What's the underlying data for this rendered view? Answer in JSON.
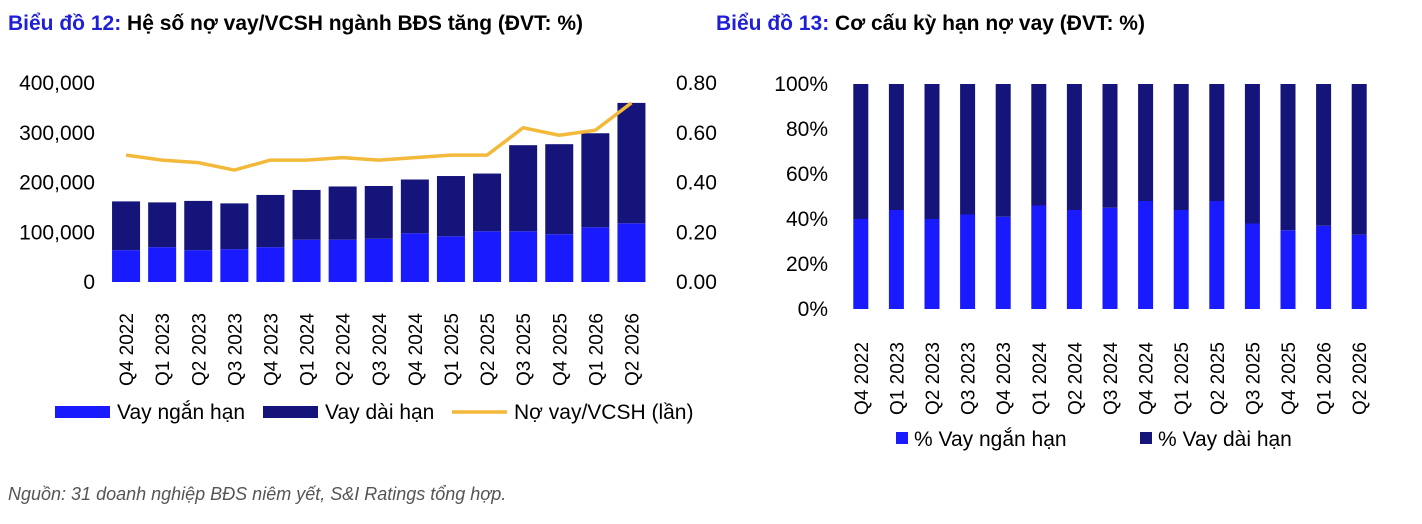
{
  "source_note": "Nguồn: 31 doanh nghiệp BĐS niêm yết,  S&I Ratings tổng hợp.",
  "colors": {
    "short_term": "#1a1aff",
    "long_term": "#14147a",
    "ratio_line": "#f2b93b",
    "title_label": "#1f1fd8"
  },
  "chart_data": [
    {
      "type": "bar",
      "stacked": true,
      "title_label": "Biểu đồ 12:",
      "title": "Hệ số nợ vay/VCSH ngành BĐS tăng (ĐVT: %)",
      "categories": [
        "Q4 2022",
        "Q1 2023",
        "Q2 2023",
        "Q3 2023",
        "Q4 2023",
        "Q1 2024",
        "Q2 2024",
        "Q3 2024",
        "Q4 2024",
        "Q1 2025",
        "Q2 2025",
        "Q3 2025",
        "Q4 2025",
        "Q1 2026",
        "Q2 2026"
      ],
      "series": [
        {
          "name": "Vay ngắn hạn",
          "axis": "left",
          "values": [
            64000,
            70000,
            64000,
            66000,
            70000,
            85000,
            85000,
            87000,
            98000,
            92000,
            102000,
            102000,
            96000,
            110000,
            118000
          ]
        },
        {
          "name": "Vay dài hạn",
          "axis": "left",
          "values": [
            98000,
            90000,
            99000,
            92000,
            105000,
            100000,
            107000,
            106000,
            108000,
            121000,
            116000,
            173000,
            181000,
            189000,
            242000
          ]
        },
        {
          "name": "Nợ vay/VCSH (lần)",
          "type": "line",
          "axis": "right",
          "values": [
            0.51,
            0.49,
            0.48,
            0.45,
            0.49,
            0.49,
            0.5,
            0.49,
            0.5,
            0.51,
            0.51,
            0.62,
            0.59,
            0.61,
            0.72
          ]
        }
      ],
      "y_left": {
        "min": 0,
        "max": 400000,
        "ticks": [
          "0",
          "100,000",
          "200,000",
          "300,000",
          "400,000"
        ]
      },
      "y_right": {
        "min": 0,
        "max": 0.8,
        "ticks": [
          "0.00",
          "0.20",
          "0.40",
          "0.60",
          "0.80"
        ]
      },
      "legend": [
        "Vay ngắn hạn",
        "Vay dài hạn",
        "Nợ vay/VCSH (lần)"
      ],
      "legend_position": "bottom",
      "grid": false
    },
    {
      "type": "bar",
      "stacked": true,
      "title_label": "Biểu đồ 13:",
      "title": "Cơ cấu kỳ hạn nợ vay (ĐVT: %)",
      "categories": [
        "Q4 2022",
        "Q1 2023",
        "Q2 2023",
        "Q3 2023",
        "Q4 2023",
        "Q1 2024",
        "Q2 2024",
        "Q3 2024",
        "Q4 2024",
        "Q1 2025",
        "Q2 2025",
        "Q3 2025",
        "Q4 2025",
        "Q1 2026",
        "Q2 2026"
      ],
      "series": [
        {
          "name": "% Vay ngắn hạn",
          "values": [
            40,
            44,
            40,
            42,
            41,
            46,
            44,
            45,
            48,
            44,
            48,
            38,
            35,
            37,
            33
          ]
        },
        {
          "name": "% Vay dài hạn",
          "values": [
            60,
            56,
            60,
            58,
            59,
            54,
            56,
            55,
            52,
            56,
            52,
            62,
            65,
            63,
            67
          ]
        }
      ],
      "y": {
        "min": 0,
        "max": 100,
        "ticks": [
          "0%",
          "20%",
          "40%",
          "60%",
          "80%",
          "100%"
        ]
      },
      "legend": [
        "% Vay ngắn hạn",
        "% Vay dài hạn"
      ],
      "legend_position": "bottom",
      "grid": false
    }
  ]
}
